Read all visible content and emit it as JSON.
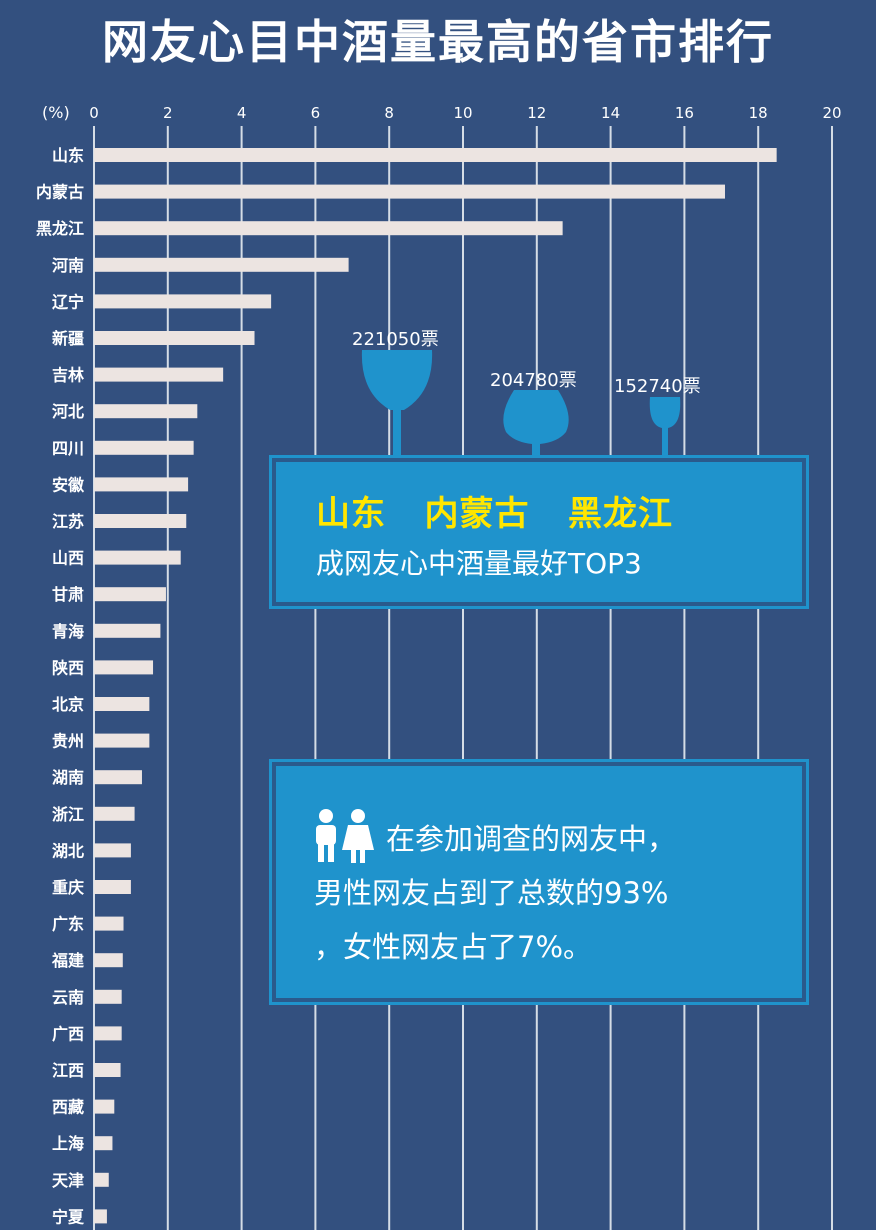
{
  "title": "网友心目中酒量最高的省市排行",
  "colors": {
    "background": "#33507f",
    "bar": "#ece4e1",
    "gridline": "#d5dde6",
    "card": "#1f93cc",
    "highlight_text": "#ffe600",
    "glass": "#1f93cc"
  },
  "chart_data": {
    "type": "bar",
    "orientation": "horizontal",
    "unit_label": "(%)",
    "xlim": [
      0,
      20
    ],
    "xticks": [
      0,
      2,
      4,
      6,
      8,
      10,
      12,
      14,
      16,
      18,
      20
    ],
    "grid": true,
    "categories": [
      "山东",
      "内蒙古",
      "黑龙江",
      "河南",
      "辽宁",
      "新疆",
      "吉林",
      "河北",
      "四川",
      "安徽",
      "江苏",
      "山西",
      "甘肃",
      "青海",
      "陕西",
      "北京",
      "贵州",
      "湖南",
      "浙江",
      "湖北",
      "重庆",
      "广东",
      "福建",
      "云南",
      "广西",
      "江西",
      "西藏",
      "上海",
      "天津",
      "宁夏"
    ],
    "values": [
      18.5,
      17.1,
      12.7,
      6.9,
      4.8,
      4.35,
      3.5,
      2.8,
      2.7,
      2.55,
      2.5,
      2.35,
      1.95,
      1.8,
      1.6,
      1.5,
      1.5,
      1.3,
      1.1,
      1.0,
      1.0,
      0.8,
      0.78,
      0.75,
      0.75,
      0.72,
      0.55,
      0.5,
      0.4,
      0.35
    ]
  },
  "top3": {
    "names": "山东   内蒙古   黑龙江",
    "caption": "成网友心中酒量最好TOP3",
    "votes": [
      {
        "label": "221050票",
        "icon": "wine-glass-icon"
      },
      {
        "label": "204780票",
        "icon": "brandy-glass-icon"
      },
      {
        "label": "152740票",
        "icon": "shot-glass-icon"
      }
    ]
  },
  "survey": {
    "icon": "people-icon",
    "line1": "在参加调查的网友中，",
    "line2": "男性网友占到了总数的93%",
    "line3": "，女性网友占了7%。"
  }
}
